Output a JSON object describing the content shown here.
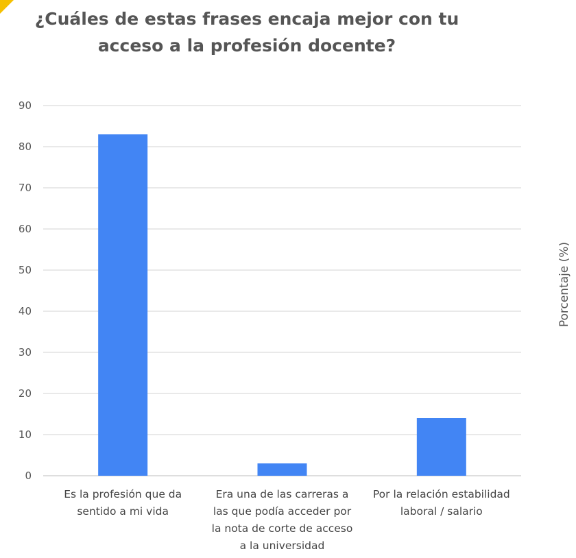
{
  "chart_data": {
    "type": "bar",
    "title_lines": [
      "¿Cuáles de estas frases encaja mejor con tu",
      "acceso a la profesión docente?"
    ],
    "categories": [
      [
        "Es la profesión que da",
        "sentido a mi vida"
      ],
      [
        "Era una de las carreras a",
        "las que podía acceder por",
        "la nota de corte de acceso",
        "a la universidad"
      ],
      [
        "Por la relación estabilidad",
        "laboral / salario"
      ]
    ],
    "values": [
      83,
      3,
      14
    ],
    "xlabel": "",
    "ylabel": "Porcentaje (%)",
    "ylim": [
      0,
      90
    ],
    "yticks": [
      "0",
      "10",
      "20",
      "30",
      "40",
      "50",
      "60",
      "70",
      "80",
      "90"
    ],
    "grid": true,
    "legend": "none",
    "colors": {
      "bar": "#4285F4",
      "grid": "#d3d3d3",
      "baseline": "#bdbdbd",
      "corner_accent": "#F5C000"
    }
  }
}
